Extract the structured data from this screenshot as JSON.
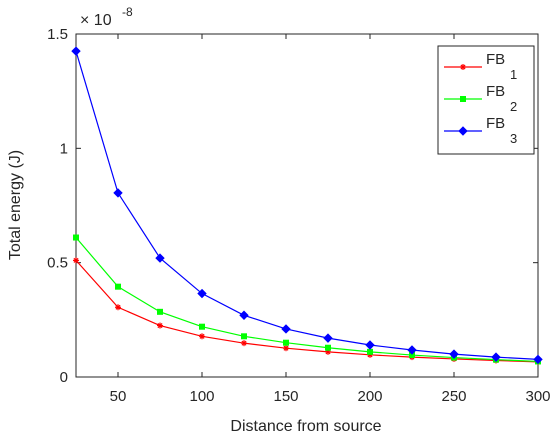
{
  "chart_data": {
    "type": "line",
    "xlabel": "Distance from source",
    "ylabel": "Total energy (J)",
    "exponent_base": "× 10",
    "exponent_power": "-8",
    "xlim": [
      25,
      300
    ],
    "ylim": [
      0,
      1.5
    ],
    "xticks": [
      "50",
      "100",
      "150",
      "200",
      "250",
      "300"
    ],
    "xtick_values": [
      50,
      100,
      150,
      200,
      250,
      300
    ],
    "yticks": [
      "0",
      "0.5",
      "1",
      "1.5"
    ],
    "ytick_values": [
      0,
      0.5,
      1,
      1.5
    ],
    "grid": false,
    "legend_position": "top-right",
    "x": [
      25,
      50,
      75,
      100,
      125,
      150,
      175,
      200,
      225,
      250,
      275,
      300
    ],
    "series": [
      {
        "name": "FB",
        "subscript": "1",
        "color": "#ff0000",
        "marker": "asterisk",
        "values": [
          0.51,
          0.305,
          0.225,
          0.178,
          0.148,
          0.126,
          0.11,
          0.097,
          0.087,
          0.079,
          0.072,
          0.066
        ]
      },
      {
        "name": "FB",
        "subscript": "2",
        "color": "#00ff00",
        "marker": "square",
        "values": [
          0.61,
          0.395,
          0.285,
          0.22,
          0.178,
          0.15,
          0.128,
          0.11,
          0.096,
          0.085,
          0.076,
          0.068
        ]
      },
      {
        "name": "FB",
        "subscript": "3",
        "color": "#0000ff",
        "marker": "diamond",
        "values": [
          1.425,
          0.805,
          0.52,
          0.365,
          0.27,
          0.21,
          0.17,
          0.14,
          0.118,
          0.1,
          0.087,
          0.077
        ]
      }
    ]
  }
}
